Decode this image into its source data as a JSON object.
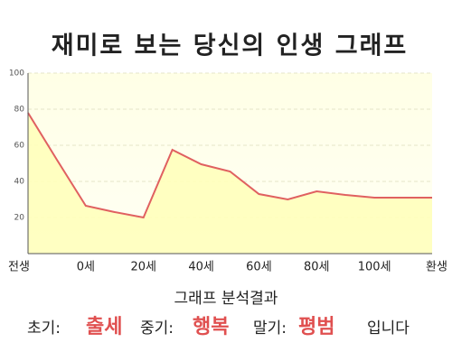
{
  "chart_data": {
    "type": "area",
    "title": "재미로 보는 당신의 인생 그래프",
    "categories": [
      "전생",
      null,
      "0세",
      null,
      "20세",
      null,
      "40세",
      null,
      "60세",
      null,
      "80세",
      null,
      "100세",
      null,
      "환생"
    ],
    "values": [
      78,
      52,
      26.5,
      23,
      20,
      57.5,
      49.5,
      45.5,
      33,
      30,
      34.5,
      32.5,
      31,
      31,
      31
    ],
    "color": "#e06060",
    "fill": "#ffffb8",
    "ylim": [
      0,
      100
    ],
    "yticks": [
      20,
      40,
      60,
      80,
      100
    ],
    "grid": true
  },
  "analysis": {
    "heading": "그래프 분석결과",
    "early_label": "초기:",
    "early": "출세",
    "middle_label": "중기:",
    "middle": "행복",
    "late_label": "말기:",
    "late": "평범",
    "ending": "입니다"
  }
}
